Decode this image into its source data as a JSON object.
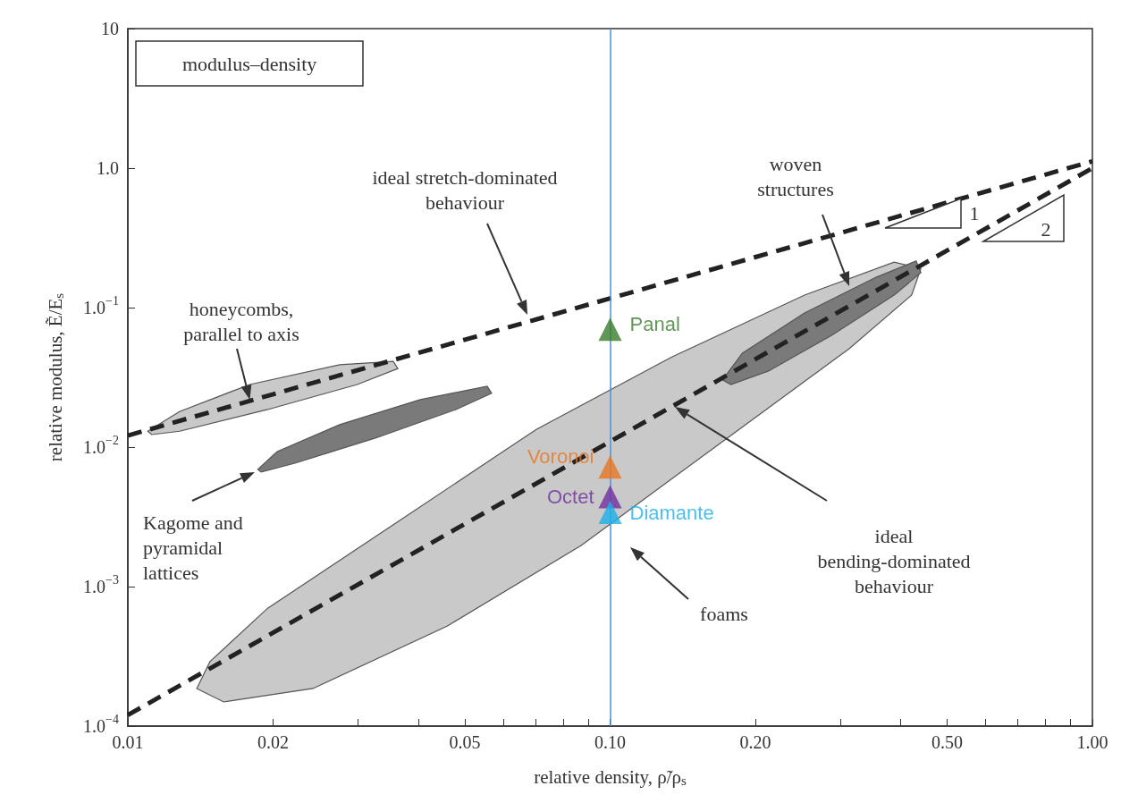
{
  "chart_data": {
    "type": "scatter",
    "title": "modulus–density",
    "xlabel": "relative density, ρ̃/ρ$_{s}$",
    "ylabel": "relative modulus, Ẽ/E$_{s}$",
    "log": "xy",
    "xlim": [
      0.01,
      1.0
    ],
    "ylim": [
      0.0001,
      10
    ],
    "xticks": [
      {
        "value": 0.01,
        "label": "0.01"
      },
      {
        "value": 0.02,
        "label": "0.02"
      },
      {
        "value": 0.03,
        "label": null
      },
      {
        "value": 0.04,
        "label": null
      },
      {
        "value": 0.05,
        "label": "0.05"
      },
      {
        "value": 0.06,
        "label": null
      },
      {
        "value": 0.07,
        "label": null
      },
      {
        "value": 0.08,
        "label": null
      },
      {
        "value": 0.09,
        "label": null
      },
      {
        "value": 0.1,
        "label": "0.10"
      },
      {
        "value": 0.2,
        "label": "0.20"
      },
      {
        "value": 0.3,
        "label": null
      },
      {
        "value": 0.4,
        "label": null
      },
      {
        "value": 0.5,
        "label": "0.50"
      },
      {
        "value": 0.6,
        "label": null
      },
      {
        "value": 0.7,
        "label": null
      },
      {
        "value": 0.8,
        "label": null
      },
      {
        "value": 0.9,
        "label": null
      },
      {
        "value": 1.0,
        "label": "1.00"
      }
    ],
    "yticks": [
      {
        "value": 0.0001,
        "label": "1.0$^{−4}$"
      },
      {
        "value": 0.001,
        "label": "1.0$^{−3}$"
      },
      {
        "value": 0.01,
        "label": "1.0$^{−2}$"
      },
      {
        "value": 0.1,
        "label": "1.0$^{−1}$"
      },
      {
        "value": 1,
        "label": "1.0"
      },
      10
    ],
    "series": [
      {
        "type": "area",
        "color": "#c9c9c9",
        "x": [
          0.0139,
          0.0148,
          0.0195,
          0.0371,
          0.0703,
          0.1334,
          0.253,
          0.388,
          0.441,
          0.422,
          0.313,
          0.165,
          0.0871,
          0.0459,
          0.0242,
          0.0158
        ],
        "values": [
          0.000186,
          0.00029,
          0.0007,
          0.00307,
          0.0134,
          0.0438,
          0.123,
          0.212,
          0.191,
          0.123,
          0.0507,
          0.01,
          0.00197,
          0.00052,
          0.000186,
          0.000149
        ]
      },
      {
        "type": "area",
        "color": "#c9c9c9",
        "x": [
          0.011,
          0.0128,
          0.0179,
          0.0275,
          0.0355,
          0.0363,
          0.0299,
          0.0195,
          0.0128,
          0.0112
        ],
        "values": [
          0.013,
          0.018,
          0.0281,
          0.0389,
          0.0412,
          0.0366,
          0.0281,
          0.0186,
          0.013,
          0.0123
        ]
      },
      {
        "type": "area",
        "color": "#7a7a7a",
        "x": [
          0.0186,
          0.0204,
          0.0275,
          0.0404,
          0.0556,
          0.0568,
          0.0479,
          0.0326,
          0.0222,
          0.0189
        ],
        "values": [
          0.00692,
          0.0093,
          0.0145,
          0.0219,
          0.0273,
          0.0243,
          0.0186,
          0.0116,
          0.00767,
          0.00662
        ]
      },
      {
        "type": "area",
        "color": "#7a7a7a",
        "x": [
          0.171,
          0.188,
          0.253,
          0.356,
          0.431,
          0.441,
          0.388,
          0.288,
          0.213,
          0.178
        ],
        "values": [
          0.0303,
          0.0471,
          0.0916,
          0.165,
          0.216,
          0.178,
          0.123,
          0.0632,
          0.0351,
          0.0281
        ]
      },
      {
        "type": "line",
        "color": "#222222",
        "line_style": "dashed",
        "marker": "none",
        "x": [
          0.01,
          1.0
        ],
        "values": [
          0.0121,
          1.12
        ]
      },
      {
        "type": "line",
        "color": "#222222",
        "line_style": "dashed",
        "marker": "none",
        "x": [
          0.01,
          1.0
        ],
        "values": [
          0.00012,
          1.0
        ]
      },
      {
        "name": "Panal",
        "color": "#3a7d2c",
        "marker": "triangle",
        "x": [
          0.1
        ],
        "values": [
          0.07
        ]
      },
      {
        "name": "Voronoi",
        "color": "#e87722",
        "marker": "triangle",
        "x": [
          0.1
        ],
        "values": [
          0.0072
        ]
      },
      {
        "name": "Octet",
        "color": "#7030a0",
        "marker": "triangle",
        "x": [
          0.1
        ],
        "values": [
          0.0044
        ]
      },
      {
        "name": "Diamante",
        "color": "#1fb0e8",
        "marker": "triangle",
        "x": [
          0.1
        ],
        "values": [
          0.0034
        ]
      }
    ],
    "ref_lines": [
      {
        "axis": "x",
        "value": 0.1,
        "color": "#4a90d9"
      }
    ],
    "annotations": [
      "ideal stretch-dominated\nbehaviour",
      {
        "text": "honeycombs,\nparallel to axis",
        "x": 0.0179,
        "y": 0.0219
      },
      "Kagome and\npyramidal\nlattices",
      "woven\nstructures",
      "ideal\nbending-dominated\nbehaviour",
      "foams",
      "1",
      "2"
    ]
  }
}
